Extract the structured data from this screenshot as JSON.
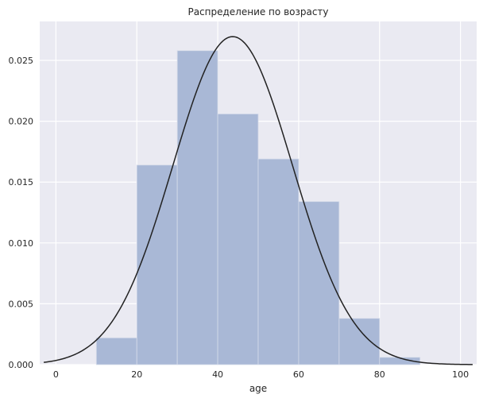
{
  "chart_data": {
    "type": "bar",
    "title": "Распределение по возрасту",
    "xlabel": "age",
    "ylabel": "",
    "xlim": [
      -4,
      104
    ],
    "ylim": [
      0,
      0.0282
    ],
    "xticks": [
      0,
      20,
      40,
      60,
      80,
      100
    ],
    "yticks": [
      0.0,
      0.005,
      0.01,
      0.015,
      0.02,
      0.025
    ],
    "ytick_labels": [
      "0.000",
      "0.005",
      "0.010",
      "0.015",
      "0.020",
      "0.025"
    ],
    "grid": true,
    "bins": [
      {
        "start": 10,
        "end": 20,
        "density": 0.0022
      },
      {
        "start": 20,
        "end": 30,
        "density": 0.0164
      },
      {
        "start": 30,
        "end": 40,
        "density": 0.0258
      },
      {
        "start": 40,
        "end": 50,
        "density": 0.0206
      },
      {
        "start": 50,
        "end": 60,
        "density": 0.0169
      },
      {
        "start": 60,
        "end": 70,
        "density": 0.0134
      },
      {
        "start": 70,
        "end": 80,
        "density": 0.0038
      },
      {
        "start": 80,
        "end": 90,
        "density": 0.0006
      }
    ],
    "fit_curve": {
      "type": "normal",
      "mean": 43.7,
      "std": 14.8,
      "x_range": [
        -3,
        103
      ]
    },
    "colors": {
      "background": "#eaeaf2",
      "grid": "#ffffff",
      "bars": "#a9b8d6",
      "curve": "#222222"
    }
  }
}
